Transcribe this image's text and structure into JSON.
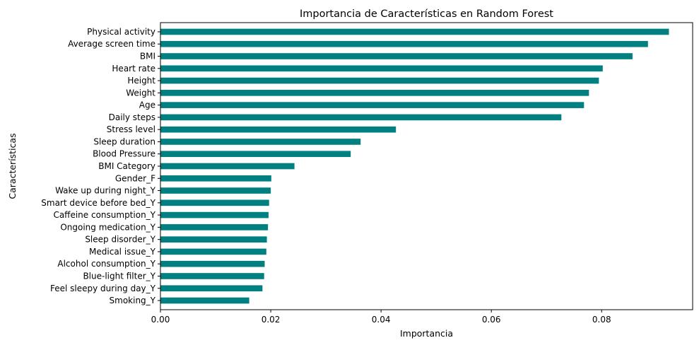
{
  "chart_data": {
    "type": "bar",
    "orientation": "horizontal",
    "title": "Importancia de Características en Random Forest",
    "xlabel": "Importancia",
    "ylabel": "Características",
    "xlim": [
      0,
      0.0965
    ],
    "xticks": [
      0.0,
      0.02,
      0.04,
      0.06,
      0.08
    ],
    "xtick_labels": [
      "0.00",
      "0.02",
      "0.04",
      "0.06",
      "0.08"
    ],
    "grid": false,
    "legend": "none",
    "bar_color": "#008080",
    "categories": [
      "Physical activity",
      "Average screen time",
      "BMI",
      "Heart rate",
      "Height",
      "Weight",
      "Age",
      "Daily steps",
      "Stress level",
      "Sleep duration",
      "Blood Pressure",
      "BMI Category",
      "Gender_F",
      "Wake up during night_Y",
      "Smart device before bed_Y",
      "Caffeine consumption_Y",
      "Ongoing medication_Y",
      "Sleep disorder_Y",
      "Medical issue_Y",
      "Alcohol consumption_Y",
      "Blue-light filter_Y",
      "Feel sleepy during day_Y",
      "Smoking_Y"
    ],
    "values": [
      0.0922,
      0.0884,
      0.0856,
      0.0802,
      0.0795,
      0.0777,
      0.0768,
      0.0727,
      0.0427,
      0.0363,
      0.0345,
      0.0243,
      0.0201,
      0.02,
      0.0197,
      0.0196,
      0.0195,
      0.0193,
      0.0192,
      0.0189,
      0.0188,
      0.0185,
      0.0161
    ]
  }
}
